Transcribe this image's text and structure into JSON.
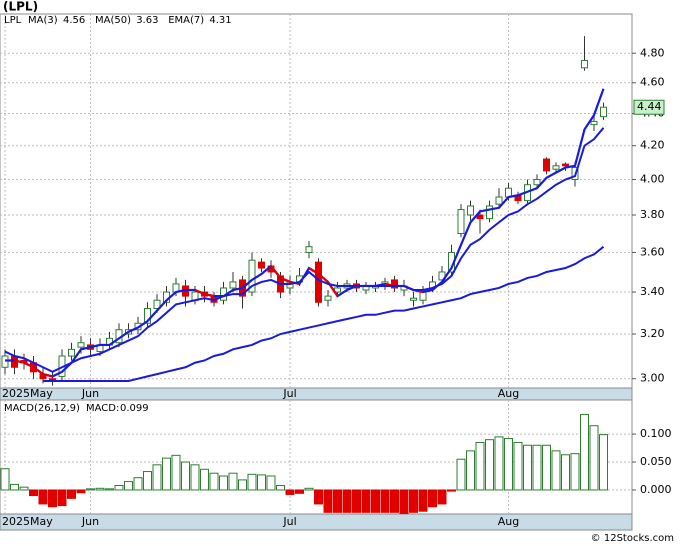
{
  "chart_data": [
    {
      "type": "candlestick",
      "title": "(LPL)",
      "ticker": "LPL",
      "categories": [
        "2025May",
        null,
        null,
        null,
        null,
        null,
        null,
        null,
        null,
        "Jun",
        null,
        null,
        null,
        null,
        null,
        null,
        null,
        null,
        null,
        null,
        null,
        null,
        null,
        null,
        null,
        null,
        null,
        null,
        null,
        null,
        "Jul",
        null,
        null,
        null,
        null,
        null,
        null,
        null,
        null,
        null,
        null,
        null,
        null,
        null,
        null,
        null,
        null,
        null,
        null,
        null,
        null,
        null,
        null,
        "Aug",
        null,
        null,
        null,
        null,
        null,
        null,
        null,
        null,
        null,
        null
      ],
      "open": [
        3.05,
        3.1,
        3.08,
        3.07,
        3.02,
        3.0,
        3.01,
        3.1,
        3.14,
        3.15,
        3.12,
        3.15,
        3.16,
        3.2,
        3.22,
        3.25,
        3.32,
        3.35,
        3.4,
        3.43,
        3.36,
        3.4,
        3.38,
        3.36,
        3.42,
        3.46,
        3.4,
        3.55,
        3.53,
        3.48,
        3.42,
        3.45,
        3.6,
        3.55,
        3.36,
        3.4,
        3.42,
        3.44,
        3.41,
        3.42,
        3.43,
        3.46,
        3.41,
        3.36,
        3.36,
        3.42,
        3.46,
        3.5,
        3.7,
        3.8,
        3.8,
        3.78,
        3.86,
        3.9,
        3.91,
        3.88,
        3.97,
        4.12,
        4.06,
        4.09,
        4.0,
        4.7,
        4.33,
        4.38
      ],
      "high": [
        3.13,
        3.13,
        3.11,
        3.1,
        3.05,
        3.03,
        3.13,
        3.16,
        3.19,
        3.18,
        3.18,
        3.21,
        3.25,
        3.25,
        3.28,
        3.35,
        3.39,
        3.43,
        3.47,
        3.46,
        3.43,
        3.43,
        3.4,
        3.45,
        3.5,
        3.48,
        3.6,
        3.57,
        3.56,
        3.5,
        3.48,
        3.52,
        3.66,
        3.57,
        3.41,
        3.45,
        3.46,
        3.46,
        3.45,
        3.45,
        3.47,
        3.48,
        3.46,
        3.4,
        3.43,
        3.48,
        3.53,
        3.64,
        3.86,
        3.88,
        3.83,
        3.88,
        3.95,
        3.98,
        3.93,
        4.0,
        4.03,
        4.13,
        4.1,
        4.1,
        4.1,
        4.92,
        4.4,
        4.47
      ],
      "low": [
        3.02,
        3.02,
        3.04,
        3.0,
        2.98,
        2.97,
        2.99,
        3.08,
        3.11,
        3.1,
        3.1,
        3.13,
        3.14,
        3.18,
        3.2,
        3.23,
        3.3,
        3.33,
        3.38,
        3.33,
        3.34,
        3.35,
        3.33,
        3.34,
        3.4,
        3.32,
        3.38,
        3.5,
        3.47,
        3.37,
        3.39,
        3.43,
        3.57,
        3.33,
        3.33,
        3.38,
        3.4,
        3.4,
        3.39,
        3.4,
        3.41,
        3.4,
        3.38,
        3.33,
        3.34,
        3.4,
        3.44,
        3.48,
        3.68,
        3.77,
        3.7,
        3.76,
        3.84,
        3.88,
        3.86,
        3.86,
        3.95,
        4.03,
        4.04,
        4.05,
        3.96,
        4.68,
        4.29,
        4.36
      ],
      "close": [
        3.1,
        3.05,
        3.07,
        3.03,
        3.0,
        2.99,
        3.1,
        3.13,
        3.16,
        3.13,
        3.15,
        3.18,
        3.22,
        3.22,
        3.25,
        3.32,
        3.36,
        3.4,
        3.44,
        3.38,
        3.4,
        3.38,
        3.35,
        3.42,
        3.45,
        3.38,
        3.56,
        3.52,
        3.5,
        3.4,
        3.45,
        3.48,
        3.63,
        3.35,
        3.38,
        3.42,
        3.44,
        3.42,
        3.43,
        3.43,
        3.45,
        3.42,
        3.43,
        3.37,
        3.4,
        3.45,
        3.5,
        3.6,
        3.83,
        3.85,
        3.78,
        3.85,
        3.9,
        3.95,
        3.88,
        3.97,
        4.0,
        4.05,
        4.08,
        4.08,
        4.07,
        4.75,
        4.35,
        4.44
      ],
      "up_color": "#2e7d32",
      "down_color": "#e00000",
      "series": [
        {
          "name": "MA(3)",
          "color": "#1a1add",
          "down_color": "#e00000",
          "values": [
            3.08,
            3.08,
            3.07,
            3.05,
            3.02,
            3.01,
            3.03,
            3.07,
            3.13,
            3.14,
            3.15,
            3.15,
            3.18,
            3.21,
            3.23,
            3.26,
            3.31,
            3.36,
            3.4,
            3.41,
            3.41,
            3.39,
            3.38,
            3.38,
            3.41,
            3.42,
            3.46,
            3.49,
            3.53,
            3.47,
            3.45,
            3.44,
            3.52,
            3.49,
            3.45,
            3.38,
            3.41,
            3.43,
            3.43,
            3.43,
            3.44,
            3.43,
            3.43,
            3.41,
            3.4,
            3.41,
            3.45,
            3.52,
            3.64,
            3.76,
            3.82,
            3.83,
            3.84,
            3.9,
            3.91,
            3.93,
            3.95,
            4.01,
            4.04,
            4.07,
            4.08,
            4.3,
            4.39,
            4.56
          ]
        },
        {
          "name": "MA(50)",
          "color": "#1a1add",
          "values": [
            null,
            null,
            null,
            null,
            2.99,
            2.99,
            2.99,
            2.99,
            2.99,
            2.99,
            2.99,
            2.99,
            2.99,
            2.99,
            3.0,
            3.01,
            3.02,
            3.03,
            3.04,
            3.05,
            3.07,
            3.08,
            3.1,
            3.11,
            3.13,
            3.14,
            3.15,
            3.17,
            3.18,
            3.2,
            3.21,
            3.22,
            3.23,
            3.24,
            3.25,
            3.26,
            3.27,
            3.28,
            3.29,
            3.29,
            3.3,
            3.31,
            3.31,
            3.32,
            3.33,
            3.34,
            3.35,
            3.36,
            3.37,
            3.39,
            3.4,
            3.41,
            3.42,
            3.44,
            3.45,
            3.47,
            3.48,
            3.5,
            3.51,
            3.52,
            3.54,
            3.57,
            3.59,
            3.63
          ]
        },
        {
          "name": "EMA(7)",
          "color": "#1a1add",
          "values": [
            3.12,
            3.1,
            3.09,
            3.07,
            3.05,
            3.03,
            3.05,
            3.07,
            3.09,
            3.1,
            3.11,
            3.13,
            3.15,
            3.17,
            3.19,
            3.23,
            3.26,
            3.3,
            3.34,
            3.35,
            3.36,
            3.37,
            3.36,
            3.38,
            3.39,
            3.39,
            3.43,
            3.45,
            3.46,
            3.44,
            3.44,
            3.45,
            3.5,
            3.46,
            3.44,
            3.43,
            3.43,
            3.43,
            3.43,
            3.43,
            3.43,
            3.43,
            3.43,
            3.41,
            3.41,
            3.42,
            3.44,
            3.48,
            3.57,
            3.64,
            3.67,
            3.72,
            3.76,
            3.8,
            3.82,
            3.86,
            3.89,
            3.93,
            3.97,
            4.0,
            4.02,
            4.2,
            4.24,
            4.31
          ]
        }
      ],
      "ylim": [
        2.96,
        5.08
      ],
      "log_scale": true,
      "grid": true,
      "yticks": [
        {
          "value": 3,
          "label": "3.00"
        },
        {
          "value": 3.2,
          "label": "3.20"
        },
        {
          "value": 3.4,
          "label": "3.40"
        },
        {
          "value": 3.6,
          "label": "3.60"
        },
        {
          "value": 3.8,
          "label": "3.80"
        },
        {
          "value": 4,
          "label": "4.00"
        },
        {
          "value": 4.2,
          "label": "4.20"
        },
        {
          "value": 4.4,
          "label": "4.40"
        },
        {
          "value": 4.6,
          "label": "4.60"
        },
        {
          "value": 4.8,
          "label": "4.80"
        }
      ]
    },
    {
      "type": "bar",
      "title": "MACD(26,12,9)",
      "categories": [
        "2025May",
        null,
        null,
        null,
        null,
        null,
        null,
        null,
        null,
        "Jun",
        null,
        null,
        null,
        null,
        null,
        null,
        null,
        null,
        null,
        null,
        null,
        null,
        null,
        null,
        null,
        null,
        null,
        null,
        null,
        null,
        "Jul",
        null,
        null,
        null,
        null,
        null,
        null,
        null,
        null,
        null,
        null,
        null,
        null,
        null,
        null,
        null,
        null,
        null,
        null,
        null,
        null,
        null,
        null,
        "Aug",
        null,
        null,
        null,
        null,
        null,
        null,
        null,
        null,
        null,
        null
      ],
      "series": [
        {
          "name": "MACD:",
          "color": "#2e7d32",
          "negative_color": "#e00000",
          "values": [
            0.038,
            0.01,
            0.005,
            -0.01,
            -0.025,
            -0.03,
            -0.028,
            -0.015,
            -0.005,
            0.002,
            0.003,
            0.002,
            0.008,
            0.015,
            0.022,
            0.033,
            0.045,
            0.057,
            0.062,
            0.05,
            0.045,
            0.037,
            0.03,
            0.025,
            0.03,
            0.018,
            0.028,
            0.027,
            0.025,
            0.008,
            -0.008,
            -0.006,
            0.003,
            -0.025,
            -0.04,
            -0.04,
            -0.04,
            -0.04,
            -0.04,
            -0.04,
            -0.04,
            -0.04,
            -0.042,
            -0.04,
            -0.038,
            -0.03,
            -0.025,
            -0.002,
            0.055,
            0.07,
            0.085,
            0.09,
            0.095,
            0.092,
            0.085,
            0.08,
            0.08,
            0.08,
            0.07,
            0.063,
            0.065,
            0.135,
            0.115,
            0.099
          ]
        }
      ],
      "ylim": [
        -0.043,
        0.161
      ],
      "grid": true,
      "yticks": [
        {
          "value": 0,
          "label": "0.000"
        },
        {
          "value": 0.05,
          "label": "0.050"
        },
        {
          "value": 0.1,
          "label": "0.100"
        }
      ]
    }
  ],
  "footer": "© 12Stocks.com"
}
